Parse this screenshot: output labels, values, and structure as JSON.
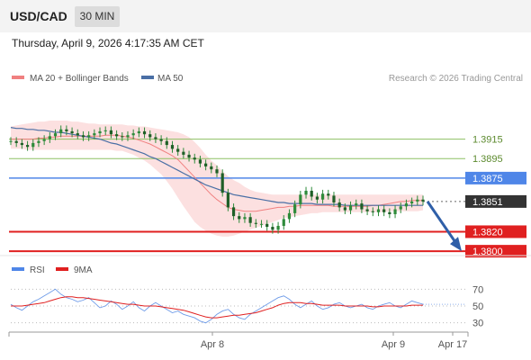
{
  "header": {
    "symbol": "USD/CAD",
    "interval": "30 MIN"
  },
  "timestamp": "Thursday, April 9, 2026 4:17:35 AM CET",
  "legend": {
    "ma20_label": "MA 20 + Bollinger Bands",
    "ma50_label": "MA 50",
    "credit": "Research © 2026 Trading Central"
  },
  "rsi_legend": {
    "rsi_label": "RSI",
    "ma_label": "9MA"
  },
  "colors": {
    "ma20": "#f08080",
    "ma50": "#4a6fa5",
    "bollinger_fill": "#fbd5d5",
    "candle": "#2e8b3a",
    "green_level": "#8dc063",
    "blue_level": "#4f86e8",
    "red_level": "#e02020",
    "arrow": "#2f5fa8",
    "price_label": "#333333"
  },
  "levels": [
    {
      "value": 1.3915,
      "label": "1.3915",
      "kind": "green"
    },
    {
      "value": 1.3895,
      "label": "1.3895",
      "kind": "green"
    },
    {
      "value": 1.3875,
      "label": "1.3875",
      "kind": "blue"
    },
    {
      "value": 1.3851,
      "label": "1.3851",
      "kind": "current"
    },
    {
      "value": 1.382,
      "label": "1.3820",
      "kind": "red"
    },
    {
      "value": 1.38,
      "label": "1.3800",
      "kind": "red"
    }
  ],
  "chart_data": {
    "type": "line",
    "title": "",
    "price_range": [
      1.37955,
      1.39654
    ],
    "x_labels": [
      "Apr 8",
      "Apr 9",
      "Apr 17"
    ],
    "candles_close": [
      1.3913,
      1.3911,
      1.3909,
      1.3907,
      1.3911,
      1.3913,
      1.3915,
      1.3918,
      1.3921,
      1.3925,
      1.3923,
      1.3921,
      1.3919,
      1.3917,
      1.3919,
      1.3921,
      1.3923,
      1.3924,
      1.392,
      1.3918,
      1.3917,
      1.3919,
      1.3921,
      1.3923,
      1.392,
      1.3917,
      1.3915,
      1.3913,
      1.3909,
      1.3905,
      1.3902,
      1.3899,
      1.3896,
      1.3894,
      1.389,
      1.3887,
      1.3884,
      1.388,
      1.386,
      1.3845,
      1.3836,
      1.3833,
      1.3835,
      1.3829,
      1.3828,
      1.3828,
      1.3825,
      1.3822,
      1.3826,
      1.3833,
      1.3839,
      1.3848,
      1.3858,
      1.3862,
      1.3856,
      1.3853,
      1.3859,
      1.3857,
      1.385,
      1.3845,
      1.3842,
      1.3847,
      1.3849,
      1.3843,
      1.3841,
      1.384,
      1.3843,
      1.384,
      1.3838,
      1.3843,
      1.3846,
      1.3849,
      1.3851,
      1.3853,
      1.3851
    ],
    "ma20": [
      1.3915,
      1.3915,
      1.3915,
      1.3915,
      1.3915,
      1.3916,
      1.3916,
      1.3917,
      1.3917,
      1.3918,
      1.3918,
      1.3918,
      1.3918,
      1.3918,
      1.3918,
      1.3918,
      1.3918,
      1.3919,
      1.3919,
      1.3919,
      1.3918,
      1.3917,
      1.3916,
      1.3914,
      1.3912,
      1.391,
      1.3907,
      1.3904,
      1.3901,
      1.3898,
      1.3894,
      1.3888,
      1.3882,
      1.3876,
      1.387,
      1.3864,
      1.3858,
      1.3853,
      1.3849,
      1.3845,
      1.3843,
      1.3842,
      1.3841,
      1.3841,
      1.3841,
      1.3842,
      1.3843,
      1.3844,
      1.3845,
      1.3845,
      1.3846,
      1.3846,
      1.3847,
      1.3847,
      1.3847,
      1.3847,
      1.3847,
      1.3847,
      1.3846,
      1.3846,
      1.3846,
      1.3846,
      1.3846,
      1.3846,
      1.3846,
      1.3847,
      1.3847,
      1.3848,
      1.3849,
      1.385,
      1.3851,
      1.3851,
      1.3852,
      1.3852,
      1.3852
    ],
    "ma50": [
      1.3927,
      1.3926,
      1.3926,
      1.3925,
      1.3925,
      1.3924,
      1.3924,
      1.3923,
      1.3922,
      1.3922,
      1.3921,
      1.392,
      1.3919,
      1.3918,
      1.3917,
      1.3916,
      1.3915,
      1.3913,
      1.3911,
      1.391,
      1.3908,
      1.3906,
      1.3904,
      1.3902,
      1.39,
      1.3897,
      1.3895,
      1.3892,
      1.3889,
      1.3886,
      1.3883,
      1.388,
      1.3877,
      1.3874,
      1.3871,
      1.3868,
      1.3866,
      1.3864,
      1.3862,
      1.386,
      1.3858,
      1.3857,
      1.3856,
      1.3855,
      1.3854,
      1.3853,
      1.3852,
      1.3851,
      1.385,
      1.385,
      1.3849,
      1.3849,
      1.3849,
      1.3849,
      1.3849,
      1.3848,
      1.3848,
      1.3848,
      1.3848,
      1.3848,
      1.3847,
      1.3847,
      1.3847,
      1.3847,
      1.3847,
      1.3847,
      1.3847,
      1.3847,
      1.3847,
      1.3847,
      1.3847,
      1.3847,
      1.3847,
      1.3847,
      1.3847
    ],
    "bollinger_upper": [
      1.3928,
      1.3929,
      1.393,
      1.3931,
      1.3932,
      1.3933,
      1.3933,
      1.3934,
      1.3934,
      1.3934,
      1.3934,
      1.3933,
      1.3933,
      1.3932,
      1.3931,
      1.3931,
      1.393,
      1.393,
      1.393,
      1.393,
      1.393,
      1.3929,
      1.3929,
      1.3928,
      1.3928,
      1.3927,
      1.3926,
      1.3925,
      1.3924,
      1.3923,
      1.3922,
      1.392,
      1.3917,
      1.3912,
      1.3906,
      1.3899,
      1.3893,
      1.3888,
      1.3882,
      1.3877,
      1.3873,
      1.387,
      1.3866,
      1.3863,
      1.3861,
      1.386,
      1.3859,
      1.3858,
      1.3858,
      1.3858,
      1.3858,
      1.3858,
      1.3858,
      1.3858,
      1.3858,
      1.3858,
      1.3858,
      1.3858,
      1.3858,
      1.3858,
      1.3858,
      1.3858,
      1.3858,
      1.3858,
      1.3858,
      1.3858,
      1.3858,
      1.3858,
      1.3858,
      1.3858,
      1.3858,
      1.3858,
      1.3858,
      1.3858,
      1.3858
    ],
    "bollinger_lower": [
      1.3905,
      1.3905,
      1.3905,
      1.3904,
      1.3904,
      1.3904,
      1.3904,
      1.3904,
      1.3904,
      1.3904,
      1.3904,
      1.3904,
      1.3904,
      1.3904,
      1.3904,
      1.3904,
      1.3904,
      1.3904,
      1.3904,
      1.3903,
      1.3903,
      1.3901,
      1.3899,
      1.3896,
      1.3893,
      1.3889,
      1.3884,
      1.3879,
      1.3872,
      1.3864,
      1.3855,
      1.3846,
      1.3838,
      1.383,
      1.3825,
      1.3821,
      1.3818,
      1.3816,
      1.3815,
      1.3815,
      1.3816,
      1.3818,
      1.382,
      1.3822,
      1.3824,
      1.3826,
      1.3828,
      1.383,
      1.3832,
      1.3834,
      1.3835,
      1.3836,
      1.3837,
      1.3838,
      1.3839,
      1.3839,
      1.384,
      1.384,
      1.384,
      1.384,
      1.384,
      1.384,
      1.384,
      1.384,
      1.384,
      1.384,
      1.384,
      1.384,
      1.3841,
      1.3841,
      1.3841,
      1.3841,
      1.3841,
      1.3841,
      1.3842
    ],
    "forecast": {
      "from": 1.3851,
      "to": 1.38
    },
    "rsi": {
      "range": [
        20,
        80
      ],
      "ticks": [
        70,
        50,
        30
      ],
      "values": [
        52,
        48,
        45,
        50,
        55,
        58,
        62,
        66,
        70,
        64,
        60,
        58,
        55,
        57,
        60,
        54,
        48,
        50,
        56,
        52,
        46,
        50,
        55,
        48,
        44,
        50,
        54,
        50,
        46,
        42,
        44,
        40,
        38,
        36,
        32,
        30,
        34,
        40,
        44,
        46,
        40,
        36,
        34,
        40,
        44,
        48,
        52,
        56,
        60,
        62,
        58,
        52,
        48,
        52,
        56,
        50,
        46,
        48,
        52,
        54,
        50,
        48,
        50,
        52,
        48,
        46,
        50,
        52,
        54,
        50,
        48,
        52,
        56,
        54,
        52
      ],
      "ma9": [
        50,
        50,
        50,
        51,
        52,
        53,
        54,
        56,
        58,
        60,
        61,
        61,
        60,
        60,
        59,
        58,
        57,
        56,
        55,
        54,
        53,
        52,
        52,
        51,
        50,
        50,
        50,
        49,
        48,
        47,
        46,
        45,
        43,
        41,
        39,
        37,
        36,
        36,
        37,
        38,
        39,
        39,
        40,
        41,
        42,
        44,
        46,
        48,
        51,
        53,
        54,
        54,
        54,
        53,
        53,
        52,
        51,
        51,
        51,
        51,
        50,
        50,
        50,
        50,
        50,
        49,
        49,
        50,
        50,
        50,
        50,
        50,
        51,
        51,
        51
      ]
    }
  }
}
